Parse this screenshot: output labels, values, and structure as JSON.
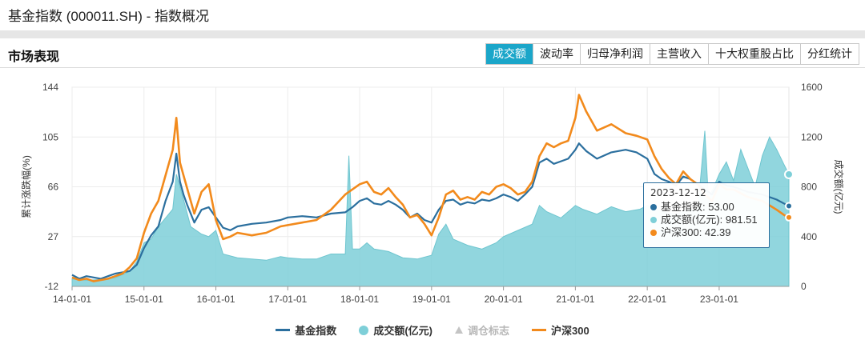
{
  "page": {
    "title": "基金指数 (000011.SH) - 指数概况"
  },
  "section": {
    "title": "市场表现"
  },
  "tabs": [
    {
      "label": "成交额",
      "active": true
    },
    {
      "label": "波动率",
      "active": false
    },
    {
      "label": "归母净利润",
      "active": false
    },
    {
      "label": "主营收入",
      "active": false
    },
    {
      "label": "十大权重股占比",
      "active": false
    },
    {
      "label": "分红统计",
      "active": false
    }
  ],
  "colors": {
    "fund_index": "#2b6f9e",
    "turnover": "#7ecfd8",
    "csi300": "#f28a1c",
    "accent": "#1ba6c9"
  },
  "tooltip": {
    "date": "2023-12-12",
    "rows": [
      {
        "label": "基金指数: 53.00",
        "color": "#2b6f9e"
      },
      {
        "label": "成交额(亿元): 981.51",
        "color": "#7ecfd8"
      },
      {
        "label": "沪深300: 42.39",
        "color": "#f28a1c"
      }
    ]
  },
  "legend": [
    {
      "label": "基金指数",
      "shape": "line",
      "color": "#2b6f9e",
      "enabled": true
    },
    {
      "label": "成交额(亿元)",
      "shape": "dot",
      "color": "#7ecfd8",
      "enabled": true
    },
    {
      "label": "调仓标志",
      "shape": "triangle",
      "color": "#c4c4c4",
      "enabled": false
    },
    {
      "label": "沪深300",
      "shape": "line",
      "color": "#f28a1c",
      "enabled": true
    }
  ],
  "chart_data": {
    "type": "line",
    "ylabel_left": "累计涨跌幅(%)",
    "ylabel_right": "成交额(亿元)",
    "y_left_ticks": [
      -12,
      27,
      66,
      105,
      144
    ],
    "y_left_lim": [
      -12,
      144
    ],
    "y_right_ticks": [
      0,
      400,
      800,
      1200,
      1600
    ],
    "y_right_lim": [
      0,
      1600
    ],
    "x_ticks": [
      "14-01-01",
      "15-01-01",
      "16-01-01",
      "17-01-01",
      "18-01-01",
      "19-01-01",
      "20-01-01",
      "21-01-01",
      "22-01-01",
      "23-01-01"
    ],
    "x_lim": [
      2014.0,
      2023.97
    ],
    "grid": true,
    "legend_position": "bottom",
    "series": [
      {
        "name": "基金指数",
        "axis": "left",
        "kind": "line",
        "points": [
          [
            2014.0,
            -3
          ],
          [
            2014.1,
            -6
          ],
          [
            2014.2,
            -4
          ],
          [
            2014.3,
            -5
          ],
          [
            2014.4,
            -6
          ],
          [
            2014.5,
            -4
          ],
          [
            2014.6,
            -2
          ],
          [
            2014.7,
            -1
          ],
          [
            2014.8,
            0
          ],
          [
            2014.9,
            5
          ],
          [
            2015.0,
            18
          ],
          [
            2015.1,
            28
          ],
          [
            2015.2,
            35
          ],
          [
            2015.3,
            55
          ],
          [
            2015.4,
            70
          ],
          [
            2015.45,
            92
          ],
          [
            2015.5,
            70
          ],
          [
            2015.55,
            60
          ],
          [
            2015.6,
            52
          ],
          [
            2015.7,
            38
          ],
          [
            2015.8,
            48
          ],
          [
            2015.9,
            50
          ],
          [
            2016.0,
            42
          ],
          [
            2016.1,
            34
          ],
          [
            2016.2,
            32
          ],
          [
            2016.3,
            35
          ],
          [
            2016.5,
            37
          ],
          [
            2016.7,
            38
          ],
          [
            2016.9,
            40
          ],
          [
            2017.0,
            42
          ],
          [
            2017.2,
            43
          ],
          [
            2017.4,
            42
          ],
          [
            2017.6,
            45
          ],
          [
            2017.8,
            46
          ],
          [
            2017.9,
            50
          ],
          [
            2018.0,
            55
          ],
          [
            2018.1,
            57
          ],
          [
            2018.2,
            53
          ],
          [
            2018.3,
            52
          ],
          [
            2018.4,
            55
          ],
          [
            2018.5,
            52
          ],
          [
            2018.6,
            48
          ],
          [
            2018.7,
            42
          ],
          [
            2018.8,
            45
          ],
          [
            2018.9,
            40
          ],
          [
            2019.0,
            38
          ],
          [
            2019.1,
            48
          ],
          [
            2019.2,
            55
          ],
          [
            2019.3,
            56
          ],
          [
            2019.4,
            52
          ],
          [
            2019.5,
            54
          ],
          [
            2019.6,
            53
          ],
          [
            2019.7,
            56
          ],
          [
            2019.8,
            55
          ],
          [
            2019.9,
            57
          ],
          [
            2020.0,
            60
          ],
          [
            2020.1,
            58
          ],
          [
            2020.2,
            55
          ],
          [
            2020.3,
            60
          ],
          [
            2020.4,
            66
          ],
          [
            2020.5,
            85
          ],
          [
            2020.6,
            88
          ],
          [
            2020.7,
            84
          ],
          [
            2020.8,
            86
          ],
          [
            2020.9,
            88
          ],
          [
            2021.0,
            95
          ],
          [
            2021.05,
            100
          ],
          [
            2021.15,
            94
          ],
          [
            2021.3,
            88
          ],
          [
            2021.5,
            93
          ],
          [
            2021.7,
            95
          ],
          [
            2021.85,
            93
          ],
          [
            2022.0,
            88
          ],
          [
            2022.1,
            76
          ],
          [
            2022.2,
            72
          ],
          [
            2022.3,
            70
          ],
          [
            2022.4,
            67
          ],
          [
            2022.5,
            74
          ],
          [
            2022.6,
            72
          ],
          [
            2022.7,
            68
          ],
          [
            2022.8,
            64
          ],
          [
            2022.9,
            60
          ],
          [
            2023.0,
            70
          ],
          [
            2023.1,
            67
          ],
          [
            2023.2,
            66
          ],
          [
            2023.4,
            62
          ],
          [
            2023.6,
            60
          ],
          [
            2023.8,
            56
          ],
          [
            2023.9,
            53
          ],
          [
            2023.97,
            51
          ]
        ]
      },
      {
        "name": "沪深300",
        "axis": "left",
        "kind": "line",
        "points": [
          [
            2014.0,
            -5
          ],
          [
            2014.1,
            -7
          ],
          [
            2014.2,
            -6
          ],
          [
            2014.3,
            -8
          ],
          [
            2014.4,
            -7
          ],
          [
            2014.5,
            -6
          ],
          [
            2014.6,
            -4
          ],
          [
            2014.7,
            -2
          ],
          [
            2014.8,
            3
          ],
          [
            2014.9,
            10
          ],
          [
            2015.0,
            30
          ],
          [
            2015.1,
            45
          ],
          [
            2015.2,
            55
          ],
          [
            2015.3,
            75
          ],
          [
            2015.4,
            95
          ],
          [
            2015.45,
            120
          ],
          [
            2015.5,
            85
          ],
          [
            2015.55,
            75
          ],
          [
            2015.6,
            65
          ],
          [
            2015.7,
            45
          ],
          [
            2015.8,
            62
          ],
          [
            2015.9,
            68
          ],
          [
            2016.0,
            40
          ],
          [
            2016.1,
            25
          ],
          [
            2016.2,
            27
          ],
          [
            2016.3,
            30
          ],
          [
            2016.5,
            28
          ],
          [
            2016.7,
            30
          ],
          [
            2016.9,
            35
          ],
          [
            2017.0,
            36
          ],
          [
            2017.2,
            38
          ],
          [
            2017.4,
            40
          ],
          [
            2017.6,
            48
          ],
          [
            2017.8,
            60
          ],
          [
            2017.9,
            64
          ],
          [
            2018.0,
            68
          ],
          [
            2018.1,
            70
          ],
          [
            2018.2,
            62
          ],
          [
            2018.3,
            60
          ],
          [
            2018.4,
            65
          ],
          [
            2018.5,
            58
          ],
          [
            2018.6,
            52
          ],
          [
            2018.7,
            42
          ],
          [
            2018.8,
            44
          ],
          [
            2018.9,
            37
          ],
          [
            2019.0,
            28
          ],
          [
            2019.1,
            42
          ],
          [
            2019.2,
            60
          ],
          [
            2019.3,
            63
          ],
          [
            2019.4,
            56
          ],
          [
            2019.5,
            58
          ],
          [
            2019.6,
            56
          ],
          [
            2019.7,
            62
          ],
          [
            2019.8,
            60
          ],
          [
            2019.9,
            66
          ],
          [
            2020.0,
            68
          ],
          [
            2020.1,
            65
          ],
          [
            2020.2,
            60
          ],
          [
            2020.3,
            62
          ],
          [
            2020.4,
            70
          ],
          [
            2020.5,
            90
          ],
          [
            2020.6,
            100
          ],
          [
            2020.7,
            97
          ],
          [
            2020.8,
            100
          ],
          [
            2020.9,
            102
          ],
          [
            2021.0,
            120
          ],
          [
            2021.05,
            138
          ],
          [
            2021.15,
            125
          ],
          [
            2021.3,
            110
          ],
          [
            2021.5,
            115
          ],
          [
            2021.7,
            108
          ],
          [
            2021.85,
            106
          ],
          [
            2022.0,
            103
          ],
          [
            2022.1,
            90
          ],
          [
            2022.2,
            80
          ],
          [
            2022.3,
            73
          ],
          [
            2022.4,
            68
          ],
          [
            2022.5,
            78
          ],
          [
            2022.6,
            72
          ],
          [
            2022.7,
            68
          ],
          [
            2022.8,
            60
          ],
          [
            2022.9,
            55
          ],
          [
            2023.0,
            68
          ],
          [
            2023.1,
            64
          ],
          [
            2023.2,
            64
          ],
          [
            2023.4,
            58
          ],
          [
            2023.6,
            55
          ],
          [
            2023.8,
            48
          ],
          [
            2023.9,
            44
          ],
          [
            2023.97,
            42
          ]
        ]
      },
      {
        "name": "成交额(亿元)",
        "axis": "right",
        "kind": "area",
        "points": [
          [
            2014.0,
            60
          ],
          [
            2014.2,
            50
          ],
          [
            2014.4,
            55
          ],
          [
            2014.6,
            70
          ],
          [
            2014.8,
            120
          ],
          [
            2014.9,
            200
          ],
          [
            2015.0,
            350
          ],
          [
            2015.1,
            380
          ],
          [
            2015.2,
            480
          ],
          [
            2015.3,
            550
          ],
          [
            2015.4,
            620
          ],
          [
            2015.45,
            900
          ],
          [
            2015.55,
            700
          ],
          [
            2015.65,
            480
          ],
          [
            2015.8,
            420
          ],
          [
            2015.9,
            400
          ],
          [
            2016.0,
            450
          ],
          [
            2016.1,
            260
          ],
          [
            2016.3,
            230
          ],
          [
            2016.5,
            220
          ],
          [
            2016.7,
            210
          ],
          [
            2016.9,
            240
          ],
          [
            2017.0,
            230
          ],
          [
            2017.2,
            220
          ],
          [
            2017.4,
            220
          ],
          [
            2017.6,
            260
          ],
          [
            2017.7,
            260
          ],
          [
            2017.8,
            260
          ],
          [
            2017.85,
            1050
          ],
          [
            2017.9,
            300
          ],
          [
            2018.0,
            300
          ],
          [
            2018.1,
            350
          ],
          [
            2018.2,
            300
          ],
          [
            2018.4,
            280
          ],
          [
            2018.6,
            230
          ],
          [
            2018.8,
            220
          ],
          [
            2019.0,
            250
          ],
          [
            2019.1,
            420
          ],
          [
            2019.2,
            500
          ],
          [
            2019.3,
            380
          ],
          [
            2019.5,
            330
          ],
          [
            2019.7,
            300
          ],
          [
            2019.9,
            350
          ],
          [
            2020.0,
            400
          ],
          [
            2020.2,
            450
          ],
          [
            2020.4,
            500
          ],
          [
            2020.5,
            650
          ],
          [
            2020.6,
            600
          ],
          [
            2020.8,
            550
          ],
          [
            2021.0,
            650
          ],
          [
            2021.1,
            620
          ],
          [
            2021.3,
            580
          ],
          [
            2021.5,
            640
          ],
          [
            2021.7,
            600
          ],
          [
            2021.9,
            620
          ],
          [
            2022.0,
            650
          ],
          [
            2022.2,
            600
          ],
          [
            2022.4,
            580
          ],
          [
            2022.6,
            620
          ],
          [
            2022.7,
            600
          ],
          [
            2022.8,
            1250
          ],
          [
            2022.85,
            700
          ],
          [
            2023.0,
            900
          ],
          [
            2023.1,
            1000
          ],
          [
            2023.2,
            850
          ],
          [
            2023.3,
            1100
          ],
          [
            2023.4,
            950
          ],
          [
            2023.5,
            800
          ],
          [
            2023.6,
            1050
          ],
          [
            2023.7,
            1200
          ],
          [
            2023.8,
            1100
          ],
          [
            2023.9,
            981
          ],
          [
            2023.97,
            900
          ]
        ]
      }
    ]
  }
}
